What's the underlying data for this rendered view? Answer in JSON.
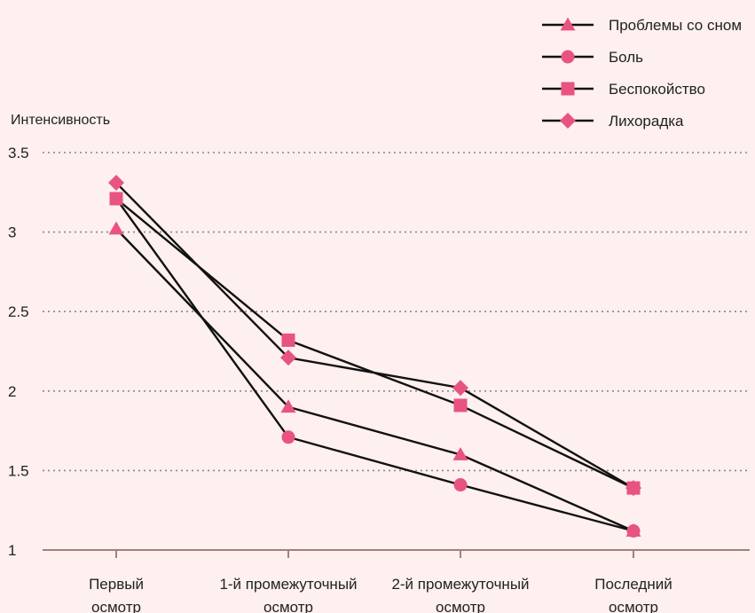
{
  "chart_data": {
    "type": "line",
    "ylabel": "Интенсивность",
    "ylim": [
      1,
      3.5
    ],
    "yticks": [
      "3.5",
      "3",
      "2.5",
      "2",
      "1.5",
      "1"
    ],
    "ytick_values": [
      3.5,
      3,
      2.5,
      2,
      1.5,
      1
    ],
    "grid": "horizontal-dotted",
    "legend_position": "top-right",
    "categories": [
      [
        "Первый",
        "осмотр"
      ],
      [
        "1-й промежуточный",
        "осмотр"
      ],
      [
        "2-й промежуточный",
        "осмотр"
      ],
      [
        "Последний",
        "осмотр"
      ]
    ],
    "series": [
      {
        "name": "Проблемы со сном",
        "marker": "triangle",
        "values": [
          3.02,
          1.9,
          1.6,
          1.12
        ]
      },
      {
        "name": "Боль",
        "marker": "circle",
        "values": [
          3.21,
          1.71,
          1.41,
          1.12
        ]
      },
      {
        "name": "Беспокойство",
        "marker": "square",
        "values": [
          3.21,
          2.32,
          1.91,
          1.39
        ]
      },
      {
        "name": "Лихорадка",
        "marker": "diamond",
        "values": [
          3.31,
          2.21,
          2.02,
          1.39
        ]
      }
    ],
    "colors": {
      "line": "#111111",
      "marker": "#e8547f",
      "grid": "#888888",
      "axis": "#a08080"
    }
  }
}
